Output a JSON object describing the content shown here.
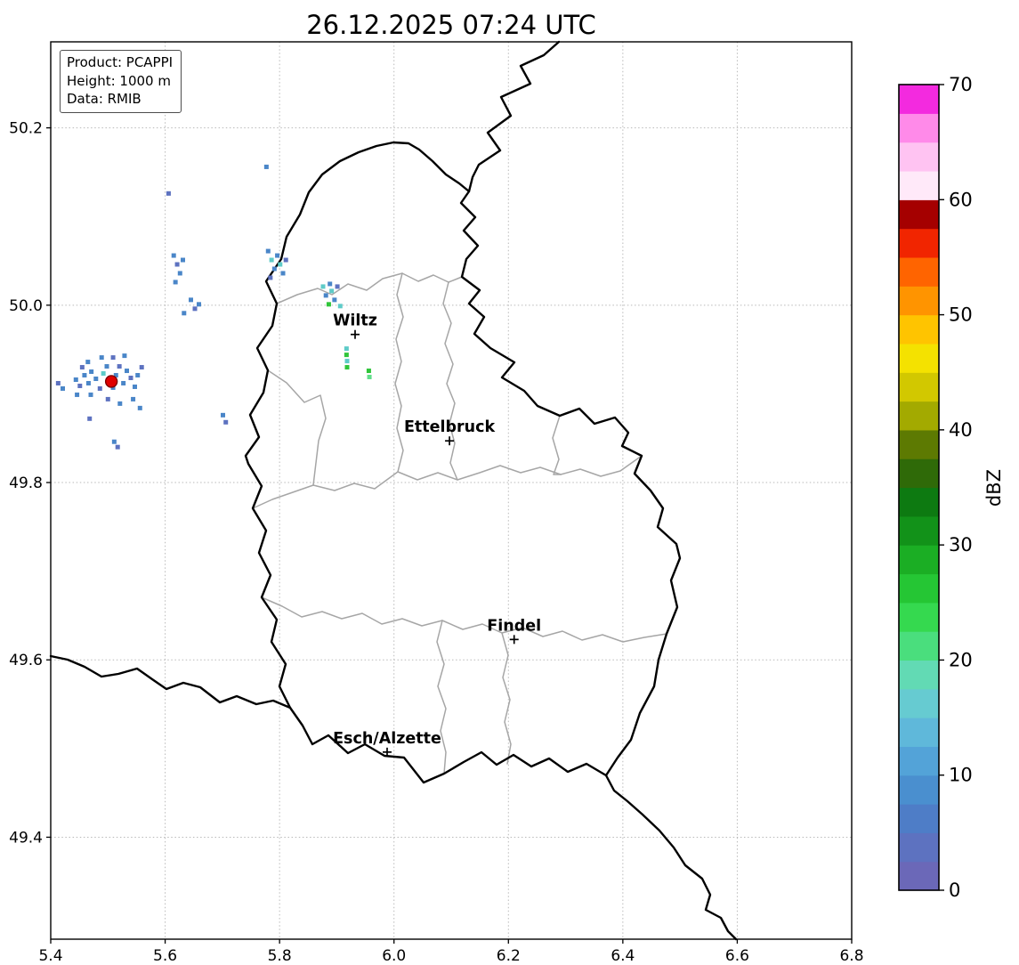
{
  "title": "26.12.2025 07:24 UTC",
  "info_box": {
    "lines": [
      "Product: PCAPPI",
      "Height: 1000 m",
      "Data: RMIB"
    ]
  },
  "axes": {
    "x": {
      "min": 5.4,
      "max": 6.8,
      "ticks": [
        "5.4",
        "5.6",
        "5.8",
        "6.0",
        "6.2",
        "6.4",
        "6.6",
        "6.8"
      ]
    },
    "y": {
      "min": 49.285,
      "max": 50.297,
      "ticks": [
        "49.4",
        "49.6",
        "49.8",
        "50.0",
        "50.2"
      ]
    }
  },
  "colorbar": {
    "label": "dBZ",
    "value_min": 0,
    "value_max": 70,
    "tick_values": [
      0,
      10,
      20,
      30,
      40,
      50,
      60,
      70
    ],
    "colors_bottom_to_top": [
      "#6b68b8",
      "#5d72c0",
      "#4e7dc7",
      "#4a8fcf",
      "#53a3d8",
      "#5fb8da",
      "#66cbd1",
      "#62dab4",
      "#4ade7d",
      "#35d94f",
      "#25c634",
      "#1bae24",
      "#129219",
      "#0d7a11",
      "#2f6a08",
      "#5d7a02",
      "#a3aa00",
      "#d2c800",
      "#f4e200",
      "#ffc400",
      "#ff9400",
      "#ff6400",
      "#f12500",
      "#a50000",
      "#ffe9f9",
      "#ffc3f2",
      "#ff8ae9",
      "#f32adf"
    ]
  },
  "cities": [
    {
      "name": "Wiltz",
      "lon": 5.932,
      "lat": 49.967
    },
    {
      "name": "Ettelbruck",
      "lon": 6.097,
      "lat": 49.847
    },
    {
      "name": "Findel",
      "lon": 6.21,
      "lat": 49.623
    },
    {
      "name": "Esch/Alzette",
      "lon": 5.988,
      "lat": 49.496
    }
  ],
  "radar_site": {
    "lon": 5.506,
    "lat": 49.914,
    "color": "#e00000",
    "edge_color": "#7f0000"
  },
  "echo_palette": {
    "b": "#4a86c8",
    "db": "#5d72c0",
    "t": "#5ecbc8",
    "g": "#2fc53a",
    "lg": "#62de8a"
  },
  "echoes": [
    [
      5.444,
      49.916,
      "b"
    ],
    [
      5.451,
      49.909,
      "db"
    ],
    [
      5.459,
      49.921,
      "b"
    ],
    [
      5.466,
      49.912,
      "b"
    ],
    [
      5.455,
      49.93,
      "db"
    ],
    [
      5.471,
      49.925,
      "b"
    ],
    [
      5.479,
      49.917,
      "b"
    ],
    [
      5.486,
      49.906,
      "db"
    ],
    [
      5.492,
      49.923,
      "t"
    ],
    [
      5.498,
      49.931,
      "b"
    ],
    [
      5.503,
      49.916,
      "t"
    ],
    [
      5.509,
      49.907,
      "b"
    ],
    [
      5.514,
      49.921,
      "b"
    ],
    [
      5.52,
      49.931,
      "db"
    ],
    [
      5.527,
      49.912,
      "b"
    ],
    [
      5.533,
      49.926,
      "b"
    ],
    [
      5.54,
      49.918,
      "db"
    ],
    [
      5.547,
      49.908,
      "b"
    ],
    [
      5.552,
      49.921,
      "b"
    ],
    [
      5.559,
      49.93,
      "db"
    ],
    [
      5.47,
      49.899,
      "b"
    ],
    [
      5.5,
      49.894,
      "db"
    ],
    [
      5.521,
      49.889,
      "b"
    ],
    [
      5.544,
      49.894,
      "b"
    ],
    [
      5.489,
      49.941,
      "b"
    ],
    [
      5.509,
      49.941,
      "db"
    ],
    [
      5.529,
      49.943,
      "b"
    ],
    [
      5.465,
      49.936,
      "b"
    ],
    [
      5.446,
      49.899,
      "b"
    ],
    [
      5.556,
      49.884,
      "b"
    ],
    [
      5.413,
      49.912,
      "db"
    ],
    [
      5.421,
      49.906,
      "b"
    ],
    [
      5.468,
      49.872,
      "db"
    ],
    [
      5.511,
      49.846,
      "b"
    ],
    [
      5.517,
      49.84,
      "db"
    ],
    [
      5.615,
      50.056,
      "b"
    ],
    [
      5.621,
      50.046,
      "db"
    ],
    [
      5.626,
      50.036,
      "b"
    ],
    [
      5.618,
      50.026,
      "b"
    ],
    [
      5.631,
      50.051,
      "b"
    ],
    [
      5.645,
      50.006,
      "b"
    ],
    [
      5.652,
      49.996,
      "db"
    ],
    [
      5.659,
      50.001,
      "b"
    ],
    [
      5.633,
      49.991,
      "b"
    ],
    [
      5.606,
      50.126,
      "db"
    ],
    [
      5.701,
      49.876,
      "b"
    ],
    [
      5.706,
      49.868,
      "db"
    ],
    [
      5.78,
      50.061,
      "b"
    ],
    [
      5.786,
      50.051,
      "t"
    ],
    [
      5.791,
      50.041,
      "b"
    ],
    [
      5.784,
      50.031,
      "db"
    ],
    [
      5.796,
      50.056,
      "b"
    ],
    [
      5.801,
      50.046,
      "t"
    ],
    [
      5.806,
      50.036,
      "b"
    ],
    [
      5.811,
      50.051,
      "db"
    ],
    [
      5.777,
      50.156,
      "b"
    ],
    [
      5.876,
      50.021,
      "t"
    ],
    [
      5.881,
      50.011,
      "b"
    ],
    [
      5.886,
      50.001,
      "g"
    ],
    [
      5.891,
      50.016,
      "t"
    ],
    [
      5.896,
      50.006,
      "b"
    ],
    [
      5.901,
      50.021,
      "db"
    ],
    [
      5.906,
      49.999,
      "t"
    ],
    [
      5.888,
      50.024,
      "b"
    ],
    [
      5.917,
      49.951,
      "t"
    ],
    [
      5.917,
      49.944,
      "g"
    ],
    [
      5.918,
      49.937,
      "t"
    ],
    [
      5.918,
      49.93,
      "g"
    ],
    [
      5.956,
      49.926,
      "g"
    ],
    [
      5.957,
      49.919,
      "lg"
    ]
  ],
  "map": {
    "country_borders": [
      "M628,47 L611,62 L585,74 L596,94 L563,109 L574,130 L548,149 L562,169 L538,185 L531,199 L527,215",
      "M527,215 L518,228 L534,244 L521,259 L537,276 L524,291 L519,311 L539,326 L527,341 L544,356 L533,375 L551,391 L578,407 L564,424 L589,439 L604,456 L629,467 L651,459 L668,476 L691,469 L706,486 L699,501 L721,512 L713,532 L731,551 L745,571 L739,592 L760,611 L764,627 L754,652 L761,682 L749,712 L740,741 L735,771 L719,801 L709,831 L694,851 L681,871 L659,858 L638,867 L617,852 L597,861 L577,848 L558,859 L541,845 L521,856 L499,869 L476,879 L454,851 L432,849 L410,836 L391,846 L369,826 L351,836 L340,815 L326,795 L314,771 L321,746 L305,721 L311,696 L294,671 L304,646 L291,621 L299,596 L284,571 L294,546 L279,521 L276,512 L291,491 L281,466 L296,441 L301,416 L289,391 L306,366 L311,341 L299,316 L316,291 L322,266 L337,241 L347,216 L362,196 L382,181 L403,171 L423,164 L442,160 L459,161 L471,168 L486,181 L501,196 L516,206 Z",
      "M57,737 L76,741 L95,749 L114,760 L133,757 L154,751 L171,763 L187,774 L206,767 L225,772 L247,789 L266,782 L288,791 L307,787 L326,795",
      "M681,871 L690,888 L705,900 L722,915 L741,933 L757,952 L770,972 L789,987 L798,1005 L793,1022 L810,1031 L818,1046 L827,1055"
    ],
    "region_borders": [
      "M311,341 L334,331 L357,324 L373,331 L391,319 L412,326 L430,313 L452,307 L470,316 L487,309 L504,317 L519,311",
      "M452,307 L446,331 L453,356 L445,381 L451,406 L444,431 L451,456 L446,481 L453,506 L447,530",
      "M284,571 L306,561 L329,553 L352,545 L376,551 L398,543 L421,549 L447,530 L469,539 L492,531 L514,539 L539,531 L562,523 L585,531 L607,525 L630,533 L652,527 L675,535 L697,529 L721,512",
      "M504,317 L498,341 L507,363 L500,386 L509,409 L502,431 L511,453 L505,476 L511,498 L506,520 L514,539",
      "M294,671 L317,681 L339,693 L362,687 L384,695 L407,689 L429,701 L452,695 L474,703 L497,697 L520,707 L542,701 L564,711 L587,705 L610,715 L632,709 L654,719 L677,713 L700,721 L724,716 L749,712",
      "M497,697 L491,721 L499,746 L492,771 L501,796 L495,821 L501,845 L499,869",
      "M564,711 L571,736 L565,761 L573,786 L567,811 L574,836 L570,858",
      "M629,467 L621,492 L628,516 L622,533 L630,533",
      "M301,416 L322,430 L342,452 L360,444 L366,470 L358,495 L352,545"
    ]
  }
}
